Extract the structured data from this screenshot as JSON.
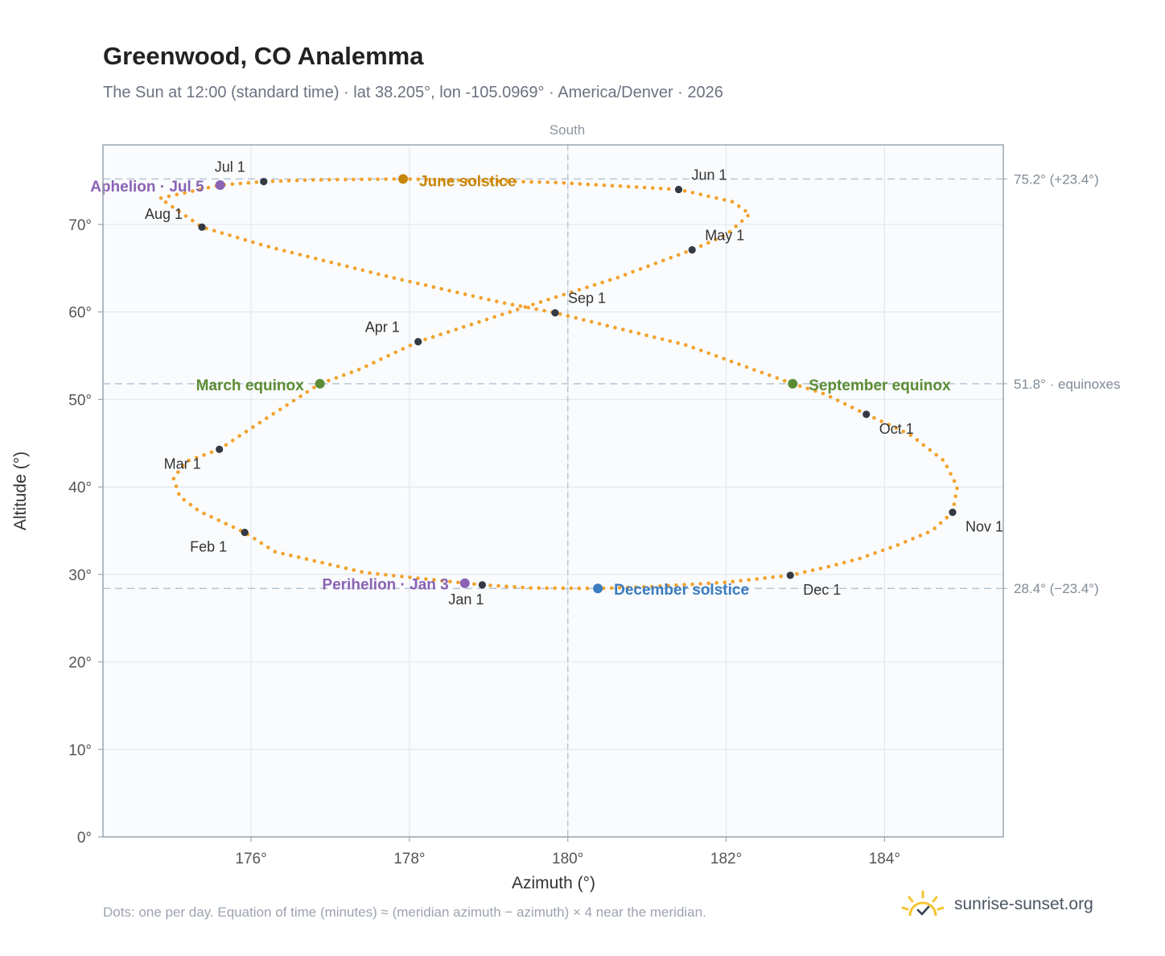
{
  "header": {
    "title": "Greenwood, CO Analemma",
    "subtitle": "The Sun at 12:00 (standard time) · lat 38.205°, lon -105.0969° · America/Denver · 2026"
  },
  "footer": {
    "note": "Dots: one per day. Equation of time (minutes) ≈ (meridian azimuth − azimuth) × 4 near the meridian.",
    "brand": "sunrise-sunset.org",
    "brand_icon": "sun-logo-icon"
  },
  "chart_data": {
    "type": "scatter",
    "xlabel": "Azimuth (°)",
    "ylabel": "Altitude (°)",
    "xlim": [
      174.13,
      185.5
    ],
    "ylim": [
      0,
      79.1
    ],
    "x_ticks": [
      176,
      178,
      180,
      182,
      184
    ],
    "y_ticks": [
      0,
      10,
      20,
      30,
      40,
      50,
      60,
      70
    ],
    "x_tick_suffix": "°",
    "y_tick_suffix": "°",
    "grid": true,
    "meridian": {
      "azimuth": 180,
      "label": "South"
    },
    "reference_lines": [
      {
        "altitude": 75.2,
        "label": "75.2° (+23.4°)"
      },
      {
        "altitude": 51.8,
        "label": "51.8° · equinoxes"
      },
      {
        "altitude": 28.4,
        "label": "28.4° (−23.4°)"
      }
    ],
    "series": [
      {
        "marker": "dot",
        "color": "#f2a22c",
        "points": [
          [
            178.92,
            28.8
          ],
          [
            177.44,
            30.2
          ],
          [
            176.3,
            32.6
          ],
          [
            175.92,
            34.8
          ],
          [
            175.35,
            37.2
          ],
          [
            175.1,
            38.9
          ],
          [
            175.02,
            41.0
          ],
          [
            175.18,
            42.9
          ],
          [
            175.6,
            44.3
          ],
          [
            176.05,
            47.0
          ],
          [
            176.87,
            51.8
          ],
          [
            177.36,
            53.4
          ],
          [
            178.11,
            56.6
          ],
          [
            178.93,
            59.0
          ],
          [
            179.78,
            61.5
          ],
          [
            180.62,
            63.9
          ],
          [
            181.57,
            67.1
          ],
          [
            182.0,
            68.8
          ],
          [
            182.3,
            71.2
          ],
          [
            182.08,
            72.6
          ],
          [
            181.4,
            74.0
          ],
          [
            179.84,
            74.8
          ],
          [
            177.92,
            75.2
          ],
          [
            176.77,
            75.1
          ],
          [
            176.16,
            74.9
          ],
          [
            175.61,
            74.5
          ],
          [
            174.85,
            73.0
          ],
          [
            175.38,
            69.7
          ],
          [
            176.2,
            67.5
          ],
          [
            177.75,
            64.0
          ],
          [
            179.1,
            61.2
          ],
          [
            179.84,
            59.9
          ],
          [
            181.5,
            56.2
          ],
          [
            182.84,
            51.8
          ],
          [
            183.25,
            50.6
          ],
          [
            183.77,
            48.3
          ],
          [
            184.32,
            46.0
          ],
          [
            184.75,
            43.0
          ],
          [
            184.92,
            40.0
          ],
          [
            184.86,
            37.1
          ],
          [
            184.6,
            35.0
          ],
          [
            184.15,
            33.3
          ],
          [
            183.68,
            31.8
          ],
          [
            183.3,
            30.9
          ],
          [
            182.81,
            29.9
          ],
          [
            182.0,
            29.1
          ],
          [
            181.05,
            28.6
          ],
          [
            180.38,
            28.4
          ],
          [
            179.55,
            28.45
          ],
          [
            178.92,
            28.8
          ]
        ]
      }
    ],
    "month_markers": [
      {
        "label": "Jan 1",
        "azimuth": 178.92,
        "altitude": 28.8
      },
      {
        "label": "Feb 1",
        "azimuth": 175.92,
        "altitude": 34.8
      },
      {
        "label": "Mar 1",
        "azimuth": 175.6,
        "altitude": 44.3
      },
      {
        "label": "Apr 1",
        "azimuth": 178.11,
        "altitude": 56.6
      },
      {
        "label": "May 1",
        "azimuth": 181.57,
        "altitude": 67.1
      },
      {
        "label": "Jun 1",
        "azimuth": 181.4,
        "altitude": 74.0
      },
      {
        "label": "Jul 1",
        "azimuth": 176.16,
        "altitude": 74.9
      },
      {
        "label": "Aug 1",
        "azimuth": 175.38,
        "altitude": 69.7
      },
      {
        "label": "Sep 1",
        "azimuth": 179.84,
        "altitude": 59.9
      },
      {
        "label": "Oct 1",
        "azimuth": 183.77,
        "altitude": 48.3
      },
      {
        "label": "Nov 1",
        "azimuth": 184.86,
        "altitude": 37.1
      },
      {
        "label": "Dec 1",
        "azimuth": 182.81,
        "altitude": 29.9
      }
    ],
    "events": [
      {
        "label": "June solstice",
        "azimuth": 177.92,
        "altitude": 75.2,
        "color": "#c8860a"
      },
      {
        "label": "March equinox",
        "azimuth": 176.87,
        "altitude": 51.8,
        "color": "#5b8c33"
      },
      {
        "label": "September equinox",
        "azimuth": 182.84,
        "altitude": 51.8,
        "color": "#5b8c33"
      },
      {
        "label": "December solstice",
        "azimuth": 180.38,
        "altitude": 28.4,
        "color": "#3b7cc0"
      },
      {
        "label": "Aphelion · Jul 5",
        "azimuth": 175.61,
        "altitude": 74.5,
        "color": "#8a63b5"
      },
      {
        "label": "Perihelion · Jan 3",
        "azimuth": 178.7,
        "altitude": 29.0,
        "color": "#8a63b5"
      }
    ]
  }
}
